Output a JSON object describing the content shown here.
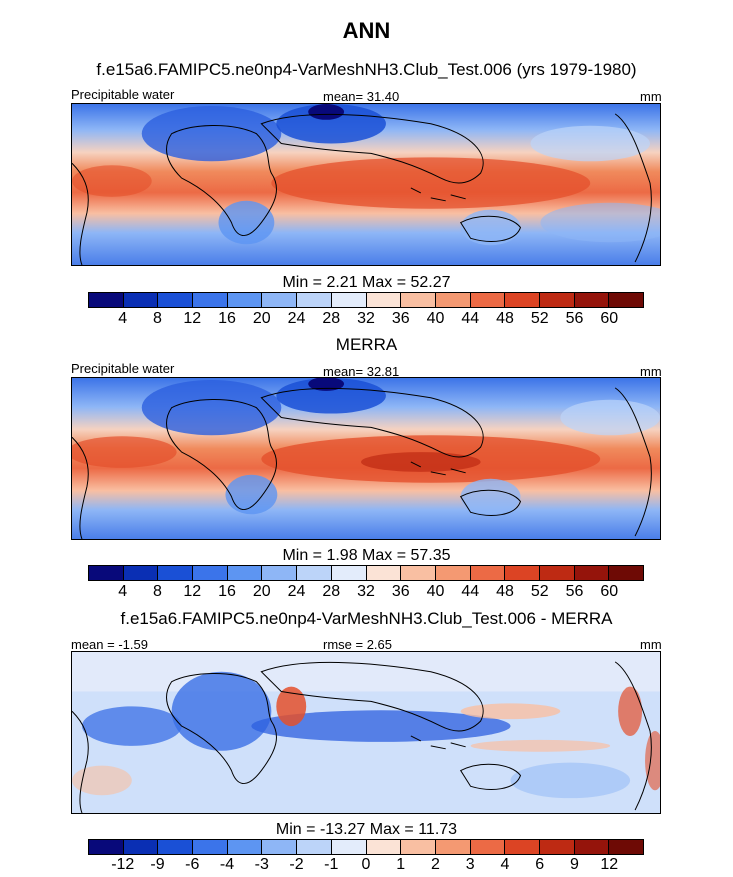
{
  "title": "ANN",
  "panels": [
    {
      "title": "f.e15a6.FAMIPC5.ne0np4-VarMeshNH3.Club_Test.006 (yrs 1979-1980)",
      "left_label": "Precipitable water",
      "center_label": "mean=  31.40",
      "right_label": "mm",
      "minmax": "Min =   2.21 Max =  52.27",
      "ticks": [
        "4",
        "8",
        "12",
        "16",
        "20",
        "24",
        "28",
        "32",
        "36",
        "40",
        "44",
        "48",
        "52",
        "56",
        "60"
      ]
    },
    {
      "title": "MERRA",
      "left_label": "Precipitable water",
      "center_label": "mean=  32.81",
      "right_label": "mm",
      "minmax": "Min =   1.98 Max =  57.35",
      "ticks": [
        "4",
        "8",
        "12",
        "16",
        "20",
        "24",
        "28",
        "32",
        "36",
        "40",
        "44",
        "48",
        "52",
        "56",
        "60"
      ]
    },
    {
      "title": "f.e15a6.FAMIPC5.ne0np4-VarMeshNH3.Club_Test.006 - MERRA",
      "left_label": "mean =  -1.59",
      "center_label": "rmse =   2.65",
      "right_label": "mm",
      "minmax": "Min = -13.27 Max =  11.73",
      "ticks": [
        "-12",
        "-9",
        "-6",
        "-4",
        "-3",
        "-2",
        "-1",
        "0",
        "1",
        "2",
        "3",
        "4",
        "6",
        "9",
        "12"
      ]
    }
  ],
  "colorbar_colors": [
    "#08097a",
    "#0a2fb4",
    "#1a50d6",
    "#3b74ea",
    "#5d95f2",
    "#8eb6f6",
    "#bcd4f9",
    "#e3ecfb",
    "#fbe3d6",
    "#f9bfa2",
    "#f49972",
    "#ec6a45",
    "#dc4424",
    "#be2a13",
    "#95140b",
    "#6e0a05"
  ],
  "map_colors": {
    "ocean_cool": "#3c74e8",
    "ocean_mid": "#a8c7f7",
    "neutral": "#f0f0f4",
    "warm": "#f08a5c",
    "hot": "#e4502c",
    "diff_blue": "#3a6fe6",
    "diff_light": "#cfe0fa",
    "diff_red": "#e4502c"
  }
}
